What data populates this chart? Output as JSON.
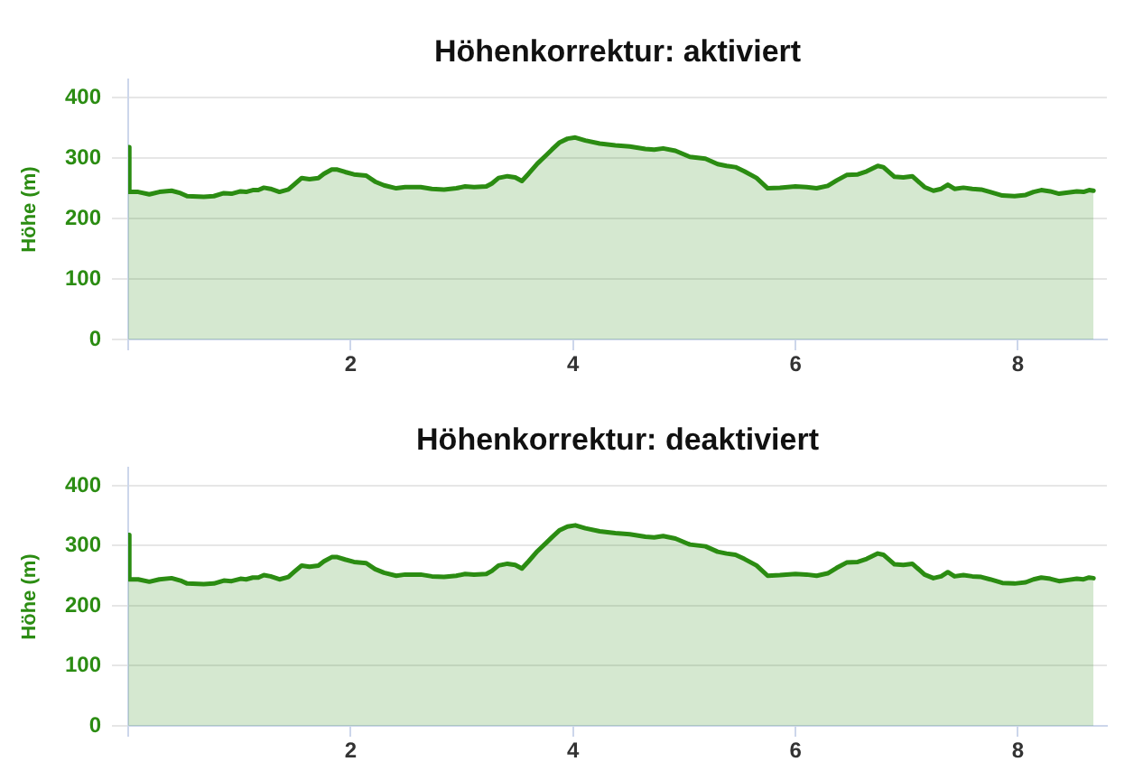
{
  "chart_data": [
    {
      "type": "area",
      "title": "Höhenkorrektur: aktiviert",
      "ylabel": "Höhe (m)",
      "color": "#2b8c12",
      "marker": "none",
      "grid": "y",
      "legend": false,
      "xlim": [
        0,
        8.8
      ],
      "xticks": [
        {
          "value": 0,
          "label": null
        },
        2,
        4,
        6,
        8
      ],
      "ylim": [
        0,
        430
      ],
      "yticks": [
        0,
        100,
        200,
        300,
        400
      ],
      "x": [
        0,
        0.01,
        0.09,
        0.19,
        0.28,
        0.39,
        0.47,
        0.53,
        0.68,
        0.77,
        0.86,
        0.93,
        1.01,
        1.06,
        1.12,
        1.17,
        1.22,
        1.28,
        1.36,
        1.44,
        1.49,
        1.56,
        1.63,
        1.71,
        1.76,
        1.83,
        1.88,
        1.95,
        2.03,
        2.14,
        2.22,
        2.3,
        2.41,
        2.49,
        2.63,
        2.73,
        2.84,
        2.95,
        3.03,
        3.11,
        3.22,
        3.27,
        3.33,
        3.41,
        3.48,
        3.54,
        3.6,
        3.68,
        3.76,
        3.81,
        3.88,
        3.95,
        4.02,
        4.11,
        4.24,
        4.38,
        4.51,
        4.65,
        4.73,
        4.81,
        4.92,
        5.05,
        5.19,
        5.3,
        5.38,
        5.46,
        5.54,
        5.65,
        5.75,
        5.86,
        6.0,
        6.1,
        6.19,
        6.29,
        6.37,
        6.46,
        6.56,
        6.64,
        6.74,
        6.79,
        6.89,
        6.97,
        7.05,
        7.1,
        7.16,
        7.24,
        7.31,
        7.37,
        7.43,
        7.51,
        7.59,
        7.67,
        7.75,
        7.86,
        7.97,
        8.07,
        8.14,
        8.21,
        8.29,
        8.37,
        8.45,
        8.53,
        8.59,
        8.64,
        8.68
      ],
      "values": [
        318,
        244,
        244,
        240,
        244,
        246,
        242,
        237,
        236,
        237,
        242,
        241,
        245,
        244,
        247,
        247,
        251,
        249,
        244,
        248,
        256,
        267,
        265,
        267,
        274,
        281,
        281,
        277,
        273,
        271,
        261,
        255,
        250,
        252,
        252,
        249,
        248,
        250,
        253,
        252,
        253,
        258,
        267,
        270,
        268,
        262,
        274,
        291,
        305,
        314,
        326,
        332,
        334,
        329,
        324,
        321,
        319,
        315,
        314,
        316,
        312,
        302,
        299,
        290,
        287,
        285,
        278,
        267,
        250,
        251,
        253,
        252,
        250,
        254,
        263,
        272,
        273,
        278,
        287,
        285,
        269,
        268,
        270,
        262,
        252,
        246,
        249,
        256,
        249,
        251,
        249,
        248,
        244,
        238,
        237,
        239,
        244,
        247,
        245,
        241,
        243,
        245,
        244,
        247,
        246
      ]
    },
    {
      "type": "area",
      "title": "Höhenkorrektur: deaktiviert",
      "ylabel": "Höhe (m)",
      "color": "#2b8c12",
      "marker": "none",
      "grid": "y",
      "legend": false,
      "xlim": [
        0,
        8.8
      ],
      "xticks": [
        {
          "value": 0,
          "label": null
        },
        2,
        4,
        6,
        8
      ],
      "ylim": [
        0,
        430
      ],
      "yticks": [
        0,
        100,
        200,
        300,
        400
      ],
      "x": [
        0,
        0.01,
        0.09,
        0.19,
        0.28,
        0.39,
        0.47,
        0.53,
        0.68,
        0.77,
        0.86,
        0.93,
        1.01,
        1.06,
        1.12,
        1.17,
        1.22,
        1.28,
        1.36,
        1.44,
        1.49,
        1.56,
        1.63,
        1.71,
        1.76,
        1.83,
        1.88,
        1.95,
        2.03,
        2.14,
        2.22,
        2.3,
        2.41,
        2.49,
        2.63,
        2.73,
        2.84,
        2.95,
        3.03,
        3.11,
        3.22,
        3.27,
        3.33,
        3.41,
        3.48,
        3.54,
        3.6,
        3.68,
        3.76,
        3.81,
        3.88,
        3.95,
        4.02,
        4.11,
        4.24,
        4.38,
        4.51,
        4.65,
        4.73,
        4.81,
        4.92,
        5.05,
        5.19,
        5.3,
        5.38,
        5.46,
        5.54,
        5.65,
        5.75,
        5.86,
        6.0,
        6.1,
        6.19,
        6.29,
        6.37,
        6.46,
        6.56,
        6.64,
        6.74,
        6.79,
        6.89,
        6.97,
        7.05,
        7.1,
        7.16,
        7.24,
        7.31,
        7.37,
        7.43,
        7.51,
        7.59,
        7.67,
        7.75,
        7.86,
        7.97,
        8.07,
        8.14,
        8.21,
        8.29,
        8.37,
        8.45,
        8.53,
        8.59,
        8.64,
        8.68
      ],
      "values": [
        318,
        244,
        244,
        240,
        244,
        246,
        242,
        237,
        236,
        237,
        242,
        241,
        245,
        244,
        247,
        247,
        251,
        249,
        244,
        248,
        256,
        267,
        265,
        267,
        274,
        281,
        281,
        277,
        273,
        271,
        261,
        255,
        250,
        252,
        252,
        249,
        248,
        250,
        253,
        252,
        253,
        258,
        267,
        270,
        268,
        262,
        274,
        291,
        305,
        314,
        326,
        332,
        334,
        329,
        324,
        321,
        319,
        315,
        314,
        316,
        312,
        302,
        299,
        290,
        287,
        285,
        278,
        267,
        250,
        251,
        253,
        252,
        250,
        254,
        263,
        272,
        273,
        278,
        287,
        285,
        269,
        268,
        270,
        262,
        252,
        246,
        249,
        256,
        249,
        251,
        249,
        248,
        244,
        238,
        237,
        239,
        244,
        247,
        245,
        241,
        243,
        245,
        244,
        247,
        246
      ]
    }
  ]
}
